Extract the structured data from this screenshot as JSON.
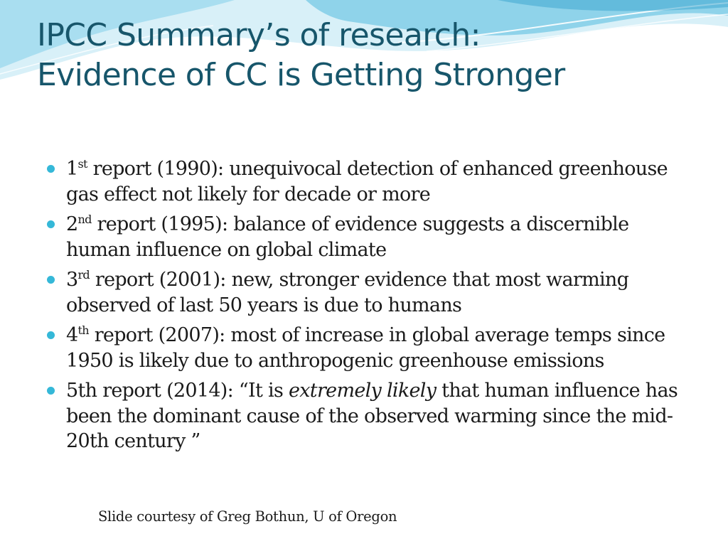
{
  "title": {
    "line1": "IPCC Summary’s of research:",
    "line2": "Evidence of CC is Getting Stronger"
  },
  "bullets": [
    {
      "ord": "1",
      "sup": "st",
      "text": " report (1990): unequivocal detection of enhanced greenhouse gas effect not likely for decade or more"
    },
    {
      "ord": "2",
      "sup": "nd",
      "text": " report (1995): balance of evidence suggests a discernible human influence on global climate"
    },
    {
      "ord": "3",
      "sup": "rd",
      "text": " report (2001): new, stronger evidence that most warming observed of last 50 years is due to humans"
    },
    {
      "ord": "4",
      "sup": "th",
      "text": " report (2007): most of increase in global average temps since 1950 is likely due to anthropogenic greenhouse emissions"
    },
    {
      "pre": "5th report (2014): “It is ",
      "em": "extremely likely",
      "post": " that human influence has been the dominant cause of the observed warming since the mid-20th century ”"
    }
  ],
  "footer": "Slide courtesy of Greg Bothun, U of Oregon",
  "colors": {
    "title": "#17566b",
    "bullet_dot": "#35b8d8",
    "wave_light": "#d8f0f8",
    "wave_mid": "#8fd3ea",
    "wave_deep": "#3fa7d0"
  }
}
